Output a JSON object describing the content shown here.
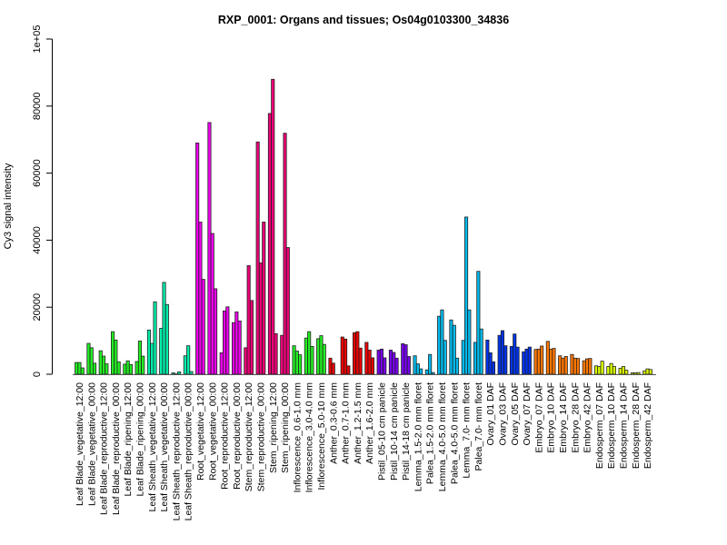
{
  "chart_data": {
    "type": "bar",
    "title": "RXP_0001: Organs and tissues; Os04g0103300_34836",
    "xlabel": "",
    "ylabel": "Cy3 signal intensity",
    "ylim": [
      0,
      100000
    ],
    "yticks": [
      0,
      20000,
      40000,
      60000,
      80000,
      100000
    ],
    "ytick_labels": [
      "0",
      "20000",
      "40000",
      "60000",
      "80000",
      "1e+05"
    ],
    "grid": false,
    "categories": [
      "Leaf Blade_vegetative_12:00",
      "Leaf Blade_vegetative_00:00",
      "Leaf Blade_reproductive_12:00",
      "Leaf Blade_reproductive_00:00",
      "Leaf Blade_ripening_12:00",
      "Leaf Blade_ripening_00:00",
      "Leaf Sheath_vegetative_12:00",
      "Leaf Sheath_vegetative_00:00",
      "Leaf Sheath_reproductive_12:00",
      "Leaf Sheath_reproductive_00:00",
      "Root_vegetative_12:00",
      "Root_vegetative_00:00",
      "Root_reproductive_12:00",
      "Root_reproductive_00:00",
      "Stem_reproductive_12:00",
      "Stem_reproductive_00:00",
      "Stem_ripening_12:00",
      "Stem_ripening_00:00",
      "Inflorescence_0.6-1.0 mm",
      "Inflorescence_3.0-4.0 mm",
      "Inflorescence_5.0-10 mm",
      "Anther_0.3-0.6 mm",
      "Anther_0.7-1.0 mm",
      "Anther_1.2-1.5 mm",
      "Anther_1.6-2.0 mm",
      "Pistil_05-10 cm panicle",
      "Pistil_10-14 cm panicle",
      "Pistil_14-18 cm panicle",
      "Lemma_1.5-2.0 mm floret",
      "Palea_1.5-2.0 mm floret",
      "Lemma_4.0-5.0 mm floret",
      "Palea_4.0-5.0 mm floret",
      "Lemma_7.0- mm floret",
      "Palea_7.0- mm floret",
      "Ovary_01 DAF",
      "Ovary_03 DAF",
      "Ovary_05 DAF",
      "Ovary_07 DAF",
      "Embryo_07 DAF",
      "Embryo_10 DAF",
      "Embryo_14 DAF",
      "Embryo_28 DAF",
      "Embryo_42 DAF",
      "Endosperm_07 DAF",
      "Endosperm_10 DAF",
      "Endosperm_14 DAF",
      "Endosperm_28 DAF",
      "Endosperm_42 DAF"
    ],
    "values": [
      [
        3500,
        3500,
        1900
      ],
      [
        9200,
        7900,
        3300
      ],
      [
        7000,
        5400,
        3100
      ],
      [
        12700,
        10200,
        3700
      ],
      [
        3000,
        4000,
        2900
      ],
      [
        3800,
        9900,
        5400
      ],
      [
        13200,
        9200,
        21600
      ],
      [
        13700,
        27400,
        20800
      ],
      [
        400,
        100,
        700
      ],
      [
        5500,
        8500,
        800
      ],
      [
        69000,
        45400,
        28300
      ],
      [
        75100,
        42000,
        25500
      ],
      [
        6400,
        18900,
        20100
      ],
      [
        15400,
        18600,
        15900
      ],
      [
        7900,
        32400,
        22000
      ],
      [
        69300,
        33200,
        45400
      ],
      [
        77800,
        88000,
        12100
      ],
      [
        11600,
        71900,
        37800
      ],
      [
        8500,
        6900,
        5800
      ],
      [
        10800,
        12700,
        8300
      ],
      [
        10600,
        11500,
        8900
      ],
      [
        4800,
        3300,
        0
      ],
      [
        11100,
        10500,
        2500
      ],
      [
        12400,
        12700,
        7800
      ],
      [
        9500,
        7200,
        4900
      ],
      [
        7200,
        7500,
        4900
      ],
      [
        7200,
        6500,
        4800
      ],
      [
        9100,
        8800,
        5300
      ],
      [
        5500,
        3100,
        1600
      ],
      [
        1300,
        5900,
        500
      ],
      [
        17300,
        19200,
        10100
      ],
      [
        16200,
        14600,
        4800
      ],
      [
        10100,
        46900,
        19200
      ],
      [
        9500,
        30700,
        13500
      ],
      [
        10200,
        6400,
        3700
      ],
      [
        11600,
        13000,
        8500
      ],
      [
        8300,
        12000,
        8100
      ],
      [
        6700,
        7500,
        8100
      ],
      [
        7400,
        7500,
        8400
      ],
      [
        9800,
        7500,
        7700
      ],
      [
        5500,
        4800,
        5300
      ],
      [
        5900,
        4800,
        4700
      ],
      [
        4000,
        4600,
        4700
      ],
      [
        2500,
        2300,
        3900
      ],
      [
        2300,
        3200,
        2300
      ],
      [
        1800,
        2300,
        1200
      ],
      [
        400,
        400,
        500
      ],
      [
        1000,
        1600,
        1400
      ]
    ],
    "colors": [
      "#22ee22",
      "#22ee22",
      "#22ee22",
      "#22ee22",
      "#22ee22",
      "#22ee22",
      "#00eeaa",
      "#00eeaa",
      "#00eeaa",
      "#00eeaa",
      "#ee00ee",
      "#ee00ee",
      "#ee00ee",
      "#ee00ee",
      "#ee0077",
      "#ee0077",
      "#ee0077",
      "#ee0077",
      "#22ee22",
      "#22ee22",
      "#22ee22",
      "#ee0000",
      "#ee0000",
      "#ee0000",
      "#ee0000",
      "#7700ee",
      "#7700ee",
      "#7700ee",
      "#00bbee",
      "#00bbee",
      "#00bbee",
      "#00bbee",
      "#00bbee",
      "#00bbee",
      "#0033ee",
      "#0033ee",
      "#0033ee",
      "#0033ee",
      "#ff7700",
      "#ff7700",
      "#ff7700",
      "#ff7700",
      "#ff7700",
      "#ddff00",
      "#ddff00",
      "#ddff00",
      "#ddff00",
      "#ddff00"
    ]
  }
}
